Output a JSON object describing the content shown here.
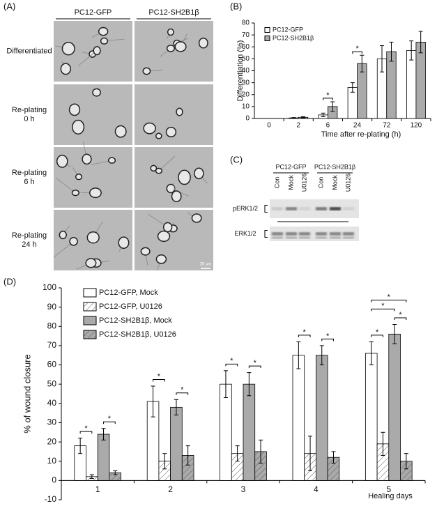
{
  "panel_a": {
    "label": "(A)",
    "columns": [
      "PC12-GFP",
      "PC12-SH2B1β"
    ],
    "rows": [
      [
        "Differentiated"
      ],
      [
        "Re-plating",
        "0 h"
      ],
      [
        "Re-plating",
        "6 h"
      ],
      [
        "Re-plating",
        "24 h"
      ]
    ],
    "scale_bar": "20 μm"
  },
  "panel_c": {
    "label": "(C)",
    "groups": [
      "PC12-GFP",
      "PC12-SH2B1β"
    ],
    "lanes": [
      "Con",
      "Mock",
      "U0126",
      "Con",
      "Mock",
      "U0126"
    ],
    "blots": [
      "pERK1/2",
      "ERK1/2"
    ]
  },
  "chart_data": [
    {
      "type": "bar",
      "label": "(B)",
      "y_label": "Differentiation (%)",
      "x_label": "Time after re-plating (h)",
      "categories": [
        "0",
        "2",
        "6",
        "24",
        "72",
        "120"
      ],
      "ylim": [
        0,
        80
      ],
      "yticks": [
        0,
        10,
        20,
        30,
        40,
        50,
        60,
        70,
        80
      ],
      "series": [
        {
          "name": "PC12-GFP",
          "color": "#ffffff",
          "values": [
            0,
            0.5,
            3,
            26,
            50,
            57
          ],
          "errors": [
            0,
            0.3,
            1.5,
            4,
            11,
            8
          ]
        },
        {
          "name": "PC12-SH2B1β",
          "color": "#aaaaaa",
          "values": [
            0,
            1,
            10,
            46,
            56,
            64
          ],
          "errors": [
            0,
            0.5,
            4,
            7,
            8,
            9
          ]
        }
      ],
      "annotations": [
        {
          "text": "*",
          "category": 2,
          "series": [
            0,
            1
          ]
        },
        {
          "text": "*",
          "category": 3,
          "series": [
            0,
            1
          ]
        }
      ]
    },
    {
      "type": "bar",
      "label": "(D)",
      "y_label": "% of wound closure",
      "x_label": "Healing days",
      "categories": [
        "1",
        "2",
        "3",
        "4",
        "5"
      ],
      "ylim": [
        -10,
        100
      ],
      "yticks": [
        -10,
        0,
        10,
        20,
        30,
        40,
        50,
        60,
        70,
        80,
        90,
        100
      ],
      "series": [
        {
          "name": "PC12-GFP, Mock",
          "color": "#ffffff",
          "hatch": false,
          "values": [
            18,
            41,
            50,
            65,
            66
          ],
          "errors": [
            4,
            8,
            7,
            7,
            6
          ]
        },
        {
          "name": "PC12-GFP, U0126",
          "color": "#ffffff",
          "hatch": true,
          "values": [
            2,
            10,
            14,
            14,
            19
          ],
          "errors": [
            1,
            4,
            4,
            9,
            6
          ]
        },
        {
          "name": "PC12-SH2B1β, Mock",
          "color": "#aaaaaa",
          "hatch": false,
          "values": [
            24,
            38,
            50,
            65,
            76
          ],
          "errors": [
            3,
            4,
            6,
            5,
            5
          ]
        },
        {
          "name": "PC12-SH2B1β, U0126",
          "color": "#aaaaaa",
          "hatch": true,
          "values": [
            4,
            13,
            15,
            12,
            10
          ],
          "errors": [
            1,
            5,
            6,
            3,
            4
          ]
        }
      ],
      "annotations": [
        {
          "text": "*",
          "category": 0,
          "series": [
            0,
            1
          ]
        },
        {
          "text": "*",
          "category": 0,
          "series": [
            2,
            3
          ]
        },
        {
          "text": "*",
          "category": 1,
          "series": [
            0,
            1
          ]
        },
        {
          "text": "*",
          "category": 1,
          "series": [
            2,
            3
          ]
        },
        {
          "text": "*",
          "category": 2,
          "series": [
            0,
            1
          ]
        },
        {
          "text": "*",
          "category": 2,
          "series": [
            2,
            3
          ]
        },
        {
          "text": "*",
          "category": 3,
          "series": [
            0,
            1
          ]
        },
        {
          "text": "*",
          "category": 3,
          "series": [
            2,
            3
          ]
        },
        {
          "text": "*",
          "category": 4,
          "series": [
            0,
            1
          ]
        },
        {
          "text": "*",
          "category": 4,
          "series": [
            2,
            3
          ]
        },
        {
          "text": "*",
          "category": 4,
          "series": [
            0,
            2
          ]
        },
        {
          "text": "*",
          "category": 4,
          "series": [
            0,
            3
          ]
        }
      ]
    }
  ]
}
